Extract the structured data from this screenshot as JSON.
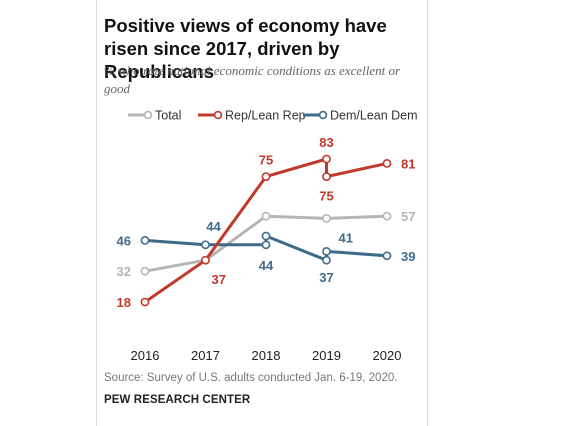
{
  "title": "Positive views of economy have risen since 2017, driven by Republicans",
  "subtitle": "% who rate national economic conditions as excellent or good",
  "source": "Source: Survey of U.S. adults conducted Jan. 6-19, 2020.",
  "footer": "PEW RESEARCH CENTER",
  "chart_data": {
    "type": "line",
    "title": "Positive views of economy have risen since 2017, driven by Republicans",
    "subtitle": "% who rate national economic conditions as excellent or good",
    "x_ticks": [
      "2016",
      "2017",
      "2018",
      "2019",
      "2020"
    ],
    "ylim": [
      0,
      100
    ],
    "grid": false,
    "legend_position": "top",
    "series": [
      {
        "name": "Total",
        "color": "#b5b5b5",
        "points": [
          {
            "x": 2016.0,
            "y": 32
          },
          {
            "x": 2017.0,
            "y": 37
          },
          {
            "x": 2018.0,
            "y": 57
          },
          {
            "x": 2019.0,
            "y": 56
          },
          {
            "x": 2020.0,
            "y": 57
          }
        ],
        "labels": [
          {
            "text": "32",
            "at": 0
          },
          {
            "text": "57",
            "at": 4
          }
        ]
      },
      {
        "name": "Rep/Lean Rep",
        "color": "#c0392b",
        "points": [
          {
            "x": 2016.0,
            "y": 18
          },
          {
            "x": 2017.0,
            "y": 37
          },
          {
            "x": 2018.0,
            "y": 75
          },
          {
            "x": 2019.0,
            "y": 83
          },
          {
            "x": 2019.0,
            "y": 75
          },
          {
            "x": 2020.0,
            "y": 81
          }
        ],
        "labels": [
          {
            "text": "18",
            "at": 0
          },
          {
            "text": "37",
            "at": 1
          },
          {
            "text": "75",
            "at": 2
          },
          {
            "text": "83",
            "at": 3
          },
          {
            "text": "75",
            "at": 4
          },
          {
            "text": "81",
            "at": 5
          }
        ]
      },
      {
        "name": "Dem/Lean Dem",
        "color": "#3f6b8a",
        "points": [
          {
            "x": 2016.0,
            "y": 46
          },
          {
            "x": 2017.0,
            "y": 44
          },
          {
            "x": 2018.0,
            "y": 44
          },
          {
            "x": 2018.0,
            "y": 48
          },
          {
            "x": 2019.0,
            "y": 37
          },
          {
            "x": 2019.0,
            "y": 41
          },
          {
            "x": 2020.0,
            "y": 39
          }
        ],
        "labels": [
          {
            "text": "46",
            "at": 0
          },
          {
            "text": "44",
            "at": 1
          },
          {
            "text": "44",
            "at": 2
          },
          {
            "text": "37",
            "at": 4
          },
          {
            "text": "41",
            "at": 5
          },
          {
            "text": "39",
            "at": 6
          }
        ]
      }
    ]
  }
}
